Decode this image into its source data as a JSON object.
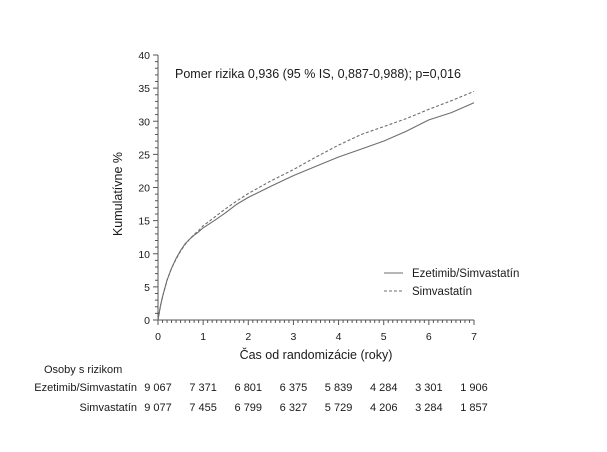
{
  "chart_data": {
    "type": "line",
    "annotation": "Pomer rizika 0,936 (95 % IS, 0,887-0,988); p=0,016",
    "xlabel": "Čas od randomizácie (roky)",
    "ylabel": "Kumulatívne %",
    "xlim": [
      0,
      7
    ],
    "ylim": [
      0,
      40
    ],
    "x_ticks": [
      0,
      1,
      2,
      3,
      4,
      5,
      6,
      7
    ],
    "y_ticks": [
      0,
      5,
      10,
      15,
      20,
      25,
      30,
      35,
      40
    ],
    "grid": false,
    "legend_position": "bottom-right",
    "series": [
      {
        "name": "Ezetimib/Simvastatín",
        "line_style": "solid",
        "color": "#6e6e6e",
        "x": [
          0,
          0.05,
          0.1,
          0.2,
          0.3,
          0.4,
          0.5,
          0.6,
          0.7,
          0.8,
          0.9,
          1.0,
          1.25,
          1.5,
          1.75,
          2.0,
          2.5,
          3.0,
          3.5,
          4.0,
          4.5,
          5.0,
          5.5,
          6.0,
          6.5,
          7.0
        ],
        "y": [
          0,
          2.0,
          3.5,
          6.0,
          7.8,
          9.3,
          10.5,
          11.5,
          12.2,
          12.8,
          13.3,
          13.9,
          15.0,
          16.2,
          17.5,
          18.5,
          20.2,
          21.8,
          23.2,
          24.6,
          25.8,
          27.0,
          28.5,
          30.2,
          31.3,
          32.8
        ]
      },
      {
        "name": "Simvastatín",
        "line_style": "dashed",
        "color": "#6e6e6e",
        "x": [
          0,
          0.05,
          0.1,
          0.2,
          0.3,
          0.4,
          0.5,
          0.6,
          0.7,
          0.8,
          0.9,
          1.0,
          1.25,
          1.5,
          1.75,
          2.0,
          2.5,
          3.0,
          3.5,
          4.0,
          4.5,
          5.0,
          5.5,
          6.0,
          6.5,
          7.0
        ],
        "y": [
          0,
          2.0,
          3.5,
          6.0,
          7.8,
          9.2,
          10.4,
          11.4,
          12.2,
          12.9,
          13.5,
          14.2,
          15.5,
          16.8,
          18.0,
          19.1,
          21.0,
          22.7,
          24.6,
          26.4,
          28.0,
          29.2,
          30.4,
          31.8,
          33.1,
          34.5
        ]
      }
    ],
    "risk_table": {
      "title": "Osoby s rizikom",
      "rows": [
        {
          "label": "Ezetimib/Simvastatín",
          "values": [
            "9 067",
            "7 371",
            "6 801",
            "6 375",
            "5 839",
            "4 284",
            "3 301",
            "1 906"
          ]
        },
        {
          "label": "Simvastatín",
          "values": [
            "9 077",
            "7 455",
            "6 799",
            "6 327",
            "5 729",
            "4 206",
            "3 284",
            "1 857"
          ]
        }
      ]
    }
  }
}
